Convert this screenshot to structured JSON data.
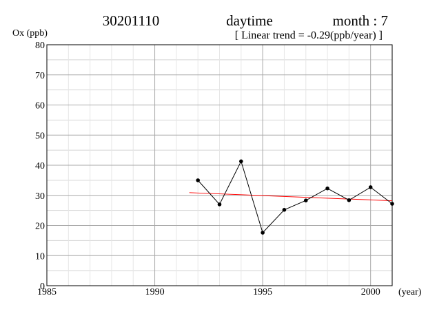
{
  "header": {
    "station": "30201110",
    "period": "daytime",
    "month": "month : 7",
    "trend": "[ Linear trend = -0.29(ppb/year) ]"
  },
  "chart_data": {
    "type": "line",
    "ylabel": "Ox (ppb)",
    "xlabel": "(year)",
    "xlim": [
      1985,
      2001
    ],
    "ylim": [
      0,
      80
    ],
    "x_ticks": [
      1985,
      1990,
      1995,
      2000
    ],
    "y_ticks": [
      0,
      10,
      20,
      30,
      40,
      50,
      60,
      70,
      80
    ],
    "x_minor_step": 1,
    "y_minor_step": 5,
    "grid": true,
    "series": [
      {
        "x": [
          1992,
          1993,
          1994,
          1995,
          1996,
          1997,
          1998,
          1999,
          2000,
          2001
        ],
        "y": [
          35.0,
          27.0,
          41.3,
          17.6,
          25.2,
          28.3,
          32.3,
          28.4,
          32.7,
          27.2
        ],
        "color": "#000000"
      }
    ],
    "trend_line": {
      "x": [
        1991.6,
        2001
      ],
      "y": [
        30.9,
        28.2
      ],
      "color": "#ff0000"
    }
  }
}
